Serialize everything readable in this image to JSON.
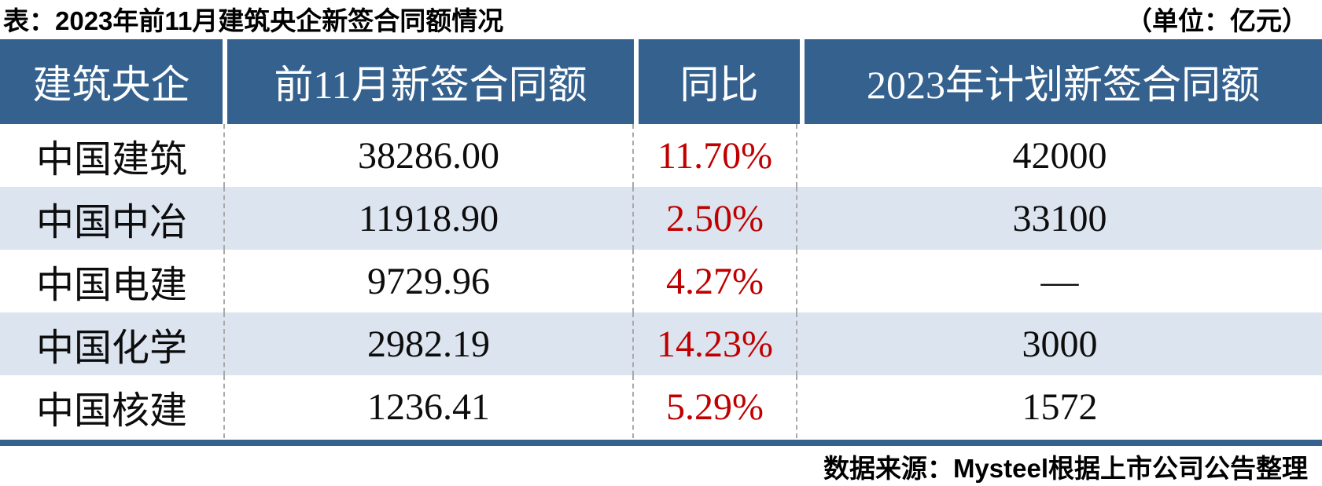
{
  "page": {
    "title": "表：2023年前11月建筑央企新签合同额情况",
    "unit_note": "（单位：亿元）",
    "source": "数据来源：Mysteel根据上市公司公告整理"
  },
  "colors": {
    "header_bg": "#35618f",
    "alt_row_bg": "#dce4ef",
    "yoy_red": "#c00000",
    "bottom_bar": "#35618f"
  },
  "table": {
    "headers": [
      "建筑央企",
      "前11月新签合同额",
      "同比",
      "2023年计划新签合同额"
    ],
    "records": [
      {
        "company": "中国建筑",
        "new_contracts_11m": "38286.00",
        "yoy": "11.70%",
        "plan_2023": "42000"
      },
      {
        "company": "中国中冶",
        "new_contracts_11m": "11918.90",
        "yoy": "2.50%",
        "plan_2023": "33100"
      },
      {
        "company": "中国电建",
        "new_contracts_11m": "9729.96",
        "yoy": "4.27%",
        "plan_2023": "—"
      },
      {
        "company": "中国化学",
        "new_contracts_11m": "2982.19",
        "yoy": "14.23%",
        "plan_2023": "3000"
      },
      {
        "company": "中国核建",
        "new_contracts_11m": "1236.41",
        "yoy": "5.29%",
        "plan_2023": "1572"
      }
    ]
  },
  "chart_data": {
    "type": "table",
    "title": "表：2023年前11月建筑央企新签合同额情况",
    "unit": "亿元",
    "columns": [
      "建筑央企",
      "前11月新签合同额",
      "同比",
      "2023年计划新签合同额"
    ],
    "rows": [
      [
        "中国建筑",
        "38286.00",
        "11.70%",
        "42000"
      ],
      [
        "中国中冶",
        "11918.90",
        "2.50%",
        "33100"
      ],
      [
        "中国电建",
        "9729.96",
        "4.27%",
        "—"
      ],
      [
        "中国化学",
        "2982.19",
        "14.23%",
        "3000"
      ],
      [
        "中国核建",
        "1236.41",
        "5.29%",
        "1572"
      ]
    ],
    "yoy_values_pct": [
      11.7,
      2.5,
      4.27,
      14.23,
      5.29
    ],
    "source": "数据来源：Mysteel根据上市公司公告整理"
  }
}
